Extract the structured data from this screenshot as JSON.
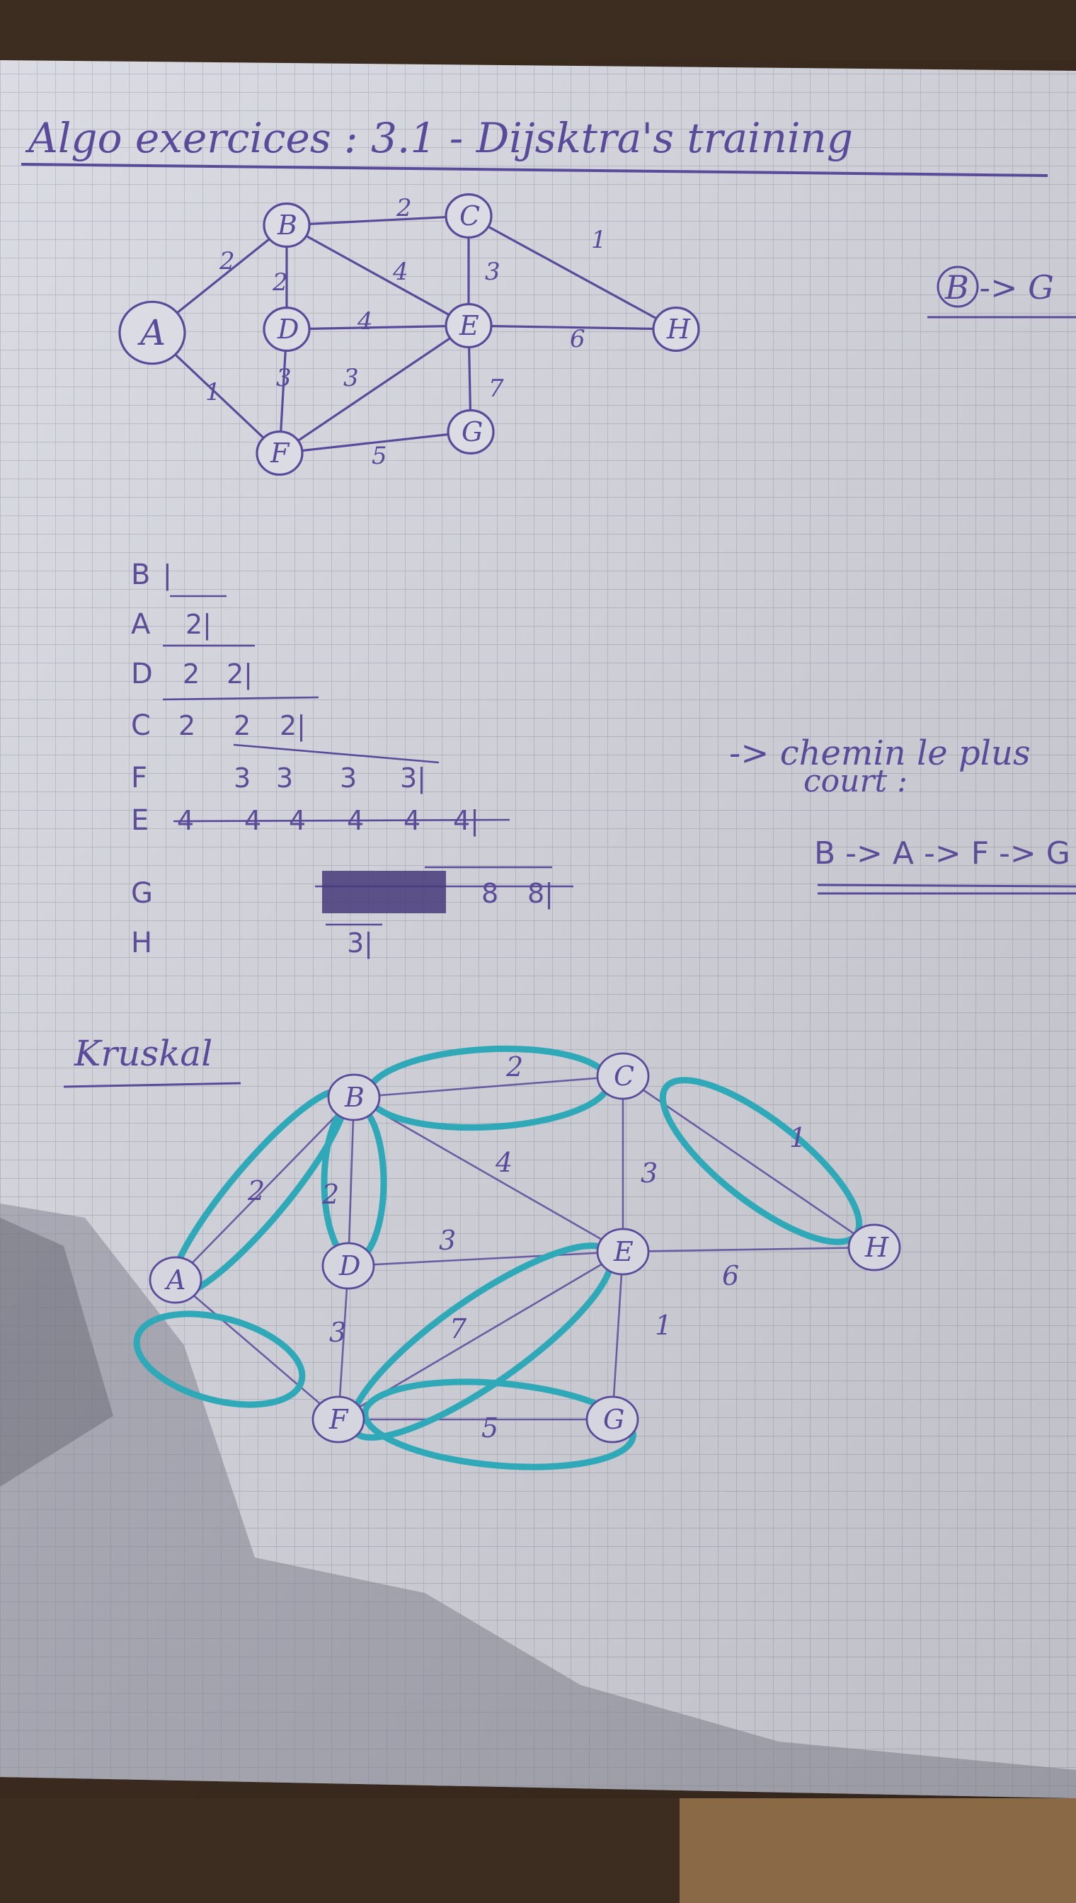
{
  "page_title": "Algo exercices : 3.1 - Dijsktra's training",
  "dijkstra_graph": {
    "nodes": [
      "A",
      "B",
      "C",
      "D",
      "E",
      "F",
      "G",
      "H"
    ],
    "edges": [
      {
        "from": "A",
        "to": "B",
        "w": "2"
      },
      {
        "from": "A",
        "to": "F",
        "w": "1"
      },
      {
        "from": "B",
        "to": "C",
        "w": "2"
      },
      {
        "from": "B",
        "to": "D",
        "w": "2"
      },
      {
        "from": "B",
        "to": "E",
        "w": "4"
      },
      {
        "from": "C",
        "to": "E",
        "w": "3"
      },
      {
        "from": "C",
        "to": "H",
        "w": "1"
      },
      {
        "from": "D",
        "to": "E",
        "w": "4"
      },
      {
        "from": "D",
        "to": "F",
        "w": "3"
      },
      {
        "from": "F",
        "to": "E",
        "w": "3"
      },
      {
        "from": "E",
        "to": "H",
        "w": "6"
      },
      {
        "from": "E",
        "to": "G",
        "w": "7"
      },
      {
        "from": "F",
        "to": "G",
        "w": "5"
      }
    ]
  },
  "side_note_top": "B -> G",
  "table": {
    "rows": [
      {
        "label": "B",
        "cells": [
          "|"
        ]
      },
      {
        "label": "A",
        "cells": [
          "2|"
        ]
      },
      {
        "label": "D",
        "cells": [
          "2",
          "2|"
        ]
      },
      {
        "label": "C",
        "cells": [
          "2",
          "2",
          "2|"
        ]
      },
      {
        "label": "F",
        "cells": [
          "3",
          "3",
          "3",
          "3|"
        ]
      },
      {
        "label": "E",
        "cells": [
          "4",
          "4",
          "4",
          "4",
          "4",
          "4|"
        ]
      },
      {
        "label": "G",
        "cells": [
          "8",
          "8|"
        ]
      },
      {
        "label": "H",
        "cells": [
          "3|"
        ]
      }
    ]
  },
  "result_note": {
    "line1": "-> chemin le plus",
    "line2": "court :",
    "path": "B -> A -> F -> G"
  },
  "kruskal": {
    "title": "Kruskal",
    "nodes": [
      "A",
      "B",
      "C",
      "D",
      "E",
      "F",
      "G",
      "H"
    ],
    "edge_labels": [
      "2",
      "4",
      "1",
      "2",
      "2",
      "3",
      "6",
      "3",
      "3",
      "7",
      "1",
      "5"
    ]
  },
  "colors": {
    "paper": "#dcdce4",
    "grid": "#b8b9c4",
    "ink": "#5a4a9a",
    "highlight": "#2fa8b8"
  }
}
